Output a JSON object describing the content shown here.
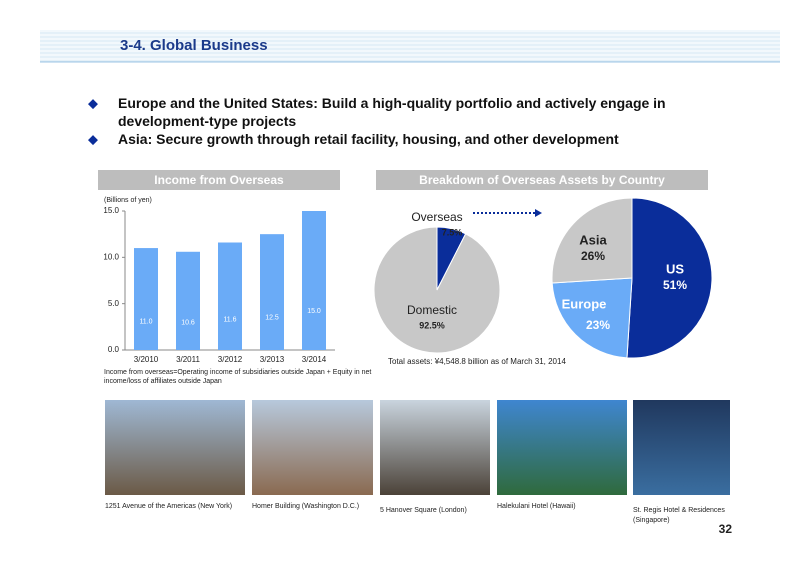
{
  "header": {
    "title": "3-4. Global Business"
  },
  "bullets": [
    "Europe and the United States: Build a high-quality portfolio and actively engage in development-type projects",
    "Asia: Secure growth through retail facility, housing, and other development"
  ],
  "chart_data": [
    {
      "type": "bar",
      "title": "Income from Overseas",
      "y_label": "(Billions of yen)",
      "categories": [
        "3/2010",
        "3/2011",
        "3/2012",
        "3/2013",
        "3/2014"
      ],
      "values": [
        11.0,
        10.6,
        11.6,
        12.5,
        15.0
      ],
      "value_labels": [
        "11.0",
        "10.6",
        "11.6",
        "12.5",
        "15.0"
      ],
      "color": "#6aabf7",
      "ylim": [
        0,
        15
      ],
      "yticks": [
        {
          "value": 0,
          "label": "0.0"
        },
        {
          "value": 5,
          "label": "5.0"
        },
        {
          "value": 10,
          "label": "10.0"
        },
        {
          "value": 15,
          "label": "15.0"
        }
      ],
      "note": "Income from overseas=Operating income of subsidiaries outside Japan + Equity in net income/loss of affiliates outside Japan"
    },
    {
      "type": "pie",
      "title": "Breakdown of Overseas Assets by Country",
      "categories": [
        "Overseas",
        "Domestic"
      ],
      "values": [
        7.5,
        92.5
      ],
      "value_labels": [
        "7.5%",
        "92.5%"
      ],
      "colors": [
        "#0a2d9a",
        "#c8c8c8"
      ]
    },
    {
      "type": "pie",
      "categories": [
        "US",
        "Europe",
        "Asia"
      ],
      "values": [
        51,
        23,
        26
      ],
      "value_labels": [
        "51%",
        "23%",
        "26%"
      ],
      "colors": [
        "#0a2d9a",
        "#6aabf7",
        "#c8c8c8"
      ],
      "note": "Total assets: ¥4,548.8 billion as of March 31, 2014"
    }
  ],
  "photos": [
    "1251 Avenue of the Americas (New York)",
    "Homer Building (Washington D.C.)",
    "5 Hanover Square (London)",
    "Halekulani Hotel (Hawaii)",
    "St. Regis Hotel & Residences (Singapore)"
  ],
  "page_number": "32"
}
